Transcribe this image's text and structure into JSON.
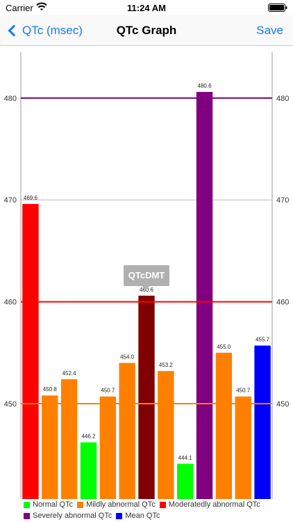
{
  "status": {
    "carrier": "Carrier",
    "time": "11:24 AM"
  },
  "nav": {
    "back_label": "QTc (msec)",
    "title": "QTc Graph",
    "save_label": "Save"
  },
  "icons": {
    "wifi": "wifi-icon",
    "battery": "battery-icon",
    "back": "chevron-left-icon"
  },
  "tooltip": {
    "text": "QTcDMT"
  },
  "chart_data": {
    "type": "bar",
    "ylim": [
      440.5,
      484.5
    ],
    "yticks": [
      450,
      460,
      470,
      480
    ],
    "grid": true,
    "legend_position": "bottom",
    "bars": [
      {
        "value": 469.6,
        "label": "469.6",
        "color": "#ff0000"
      },
      {
        "value": 450.8,
        "label": "450.8",
        "color": "#ff8000"
      },
      {
        "value": 452.4,
        "label": "452.4",
        "color": "#ff8000"
      },
      {
        "value": 446.2,
        "label": "446.2",
        "color": "#00ff00"
      },
      {
        "value": 450.7,
        "label": "450.7",
        "color": "#ff8000"
      },
      {
        "value": 454.0,
        "label": "454.0",
        "color": "#ff8000"
      },
      {
        "value": 460.6,
        "label": "460.6",
        "color": "#800000"
      },
      {
        "value": 453.2,
        "label": "453.2",
        "color": "#ff8000"
      },
      {
        "value": 444.1,
        "label": "444.1",
        "color": "#00ff00"
      },
      {
        "value": 480.6,
        "label": "480.6",
        "color": "#800080"
      },
      {
        "value": 455.0,
        "label": "455.0",
        "color": "#ff8000"
      },
      {
        "value": 450.7,
        "label": "450.7",
        "color": "#ff8000"
      },
      {
        "value": 455.7,
        "label": "455.7",
        "color": "#0000ff"
      }
    ],
    "threshold_lines": [
      {
        "value": 450,
        "color": "#ff8000"
      },
      {
        "value": 460,
        "color": "#ff0000"
      },
      {
        "value": 480,
        "color": "#800080"
      }
    ],
    "legend": [
      [
        {
          "name": "Normal QTc",
          "color": "#00ff00"
        },
        {
          "name": "Mildly abnormal QTc",
          "color": "#ff8000"
        },
        {
          "name": "Moderatedly abnormal QTc",
          "color": "#ff0000"
        }
      ],
      [
        {
          "name": "Severely abnormal QTc",
          "color": "#800080"
        },
        {
          "name": "Mean QTc",
          "color": "#0000ff"
        }
      ]
    ]
  }
}
